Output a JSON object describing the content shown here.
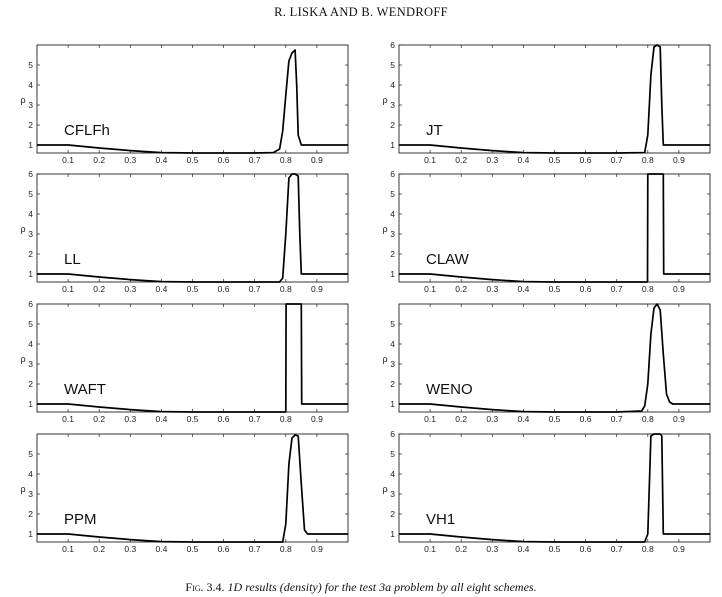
{
  "header": {
    "running_head": "R. LISKA AND B. WENDROFF"
  },
  "caption": {
    "label": "Fig. 3.4.",
    "text": "1D results (density) for the test 3a problem by all eight schemes."
  },
  "chart_data": [
    {
      "type": "line",
      "title": "CFLFh",
      "ylabel": "ρ",
      "xlim": [
        0,
        1
      ],
      "ylim": [
        0.6,
        6
      ],
      "xticks": [
        "0.1",
        "0.2",
        "0.3",
        "0.4",
        "0.5",
        "0.6",
        "0.7",
        "0.8",
        "0.9"
      ],
      "yticks": [
        "1",
        "2",
        "3",
        "4",
        "5"
      ],
      "x": [
        0,
        0.1,
        0.2,
        0.3,
        0.4,
        0.5,
        0.6,
        0.7,
        0.76,
        0.78,
        0.79,
        0.8,
        0.81,
        0.82,
        0.83,
        0.835,
        0.84,
        0.85,
        0.87,
        1.0
      ],
      "y": [
        1,
        1,
        0.85,
        0.72,
        0.62,
        0.6,
        0.6,
        0.6,
        0.62,
        0.8,
        1.7,
        3.5,
        5.2,
        5.6,
        5.75,
        4.0,
        1.5,
        1.0,
        1.0,
        1.0
      ]
    },
    {
      "type": "line",
      "title": "JT",
      "ylabel": "ρ",
      "xlim": [
        0,
        1
      ],
      "ylim": [
        0.6,
        6
      ],
      "xticks": [
        "0.1",
        "0.2",
        "0.3",
        "0.4",
        "0.5",
        "0.6",
        "0.7",
        "0.8",
        "0.9"
      ],
      "yticks": [
        "1",
        "2",
        "3",
        "4",
        "5",
        "6"
      ],
      "x": [
        0,
        0.1,
        0.2,
        0.3,
        0.4,
        0.5,
        0.6,
        0.7,
        0.79,
        0.8,
        0.81,
        0.82,
        0.83,
        0.84,
        0.845,
        0.85,
        0.87,
        1.0
      ],
      "y": [
        1,
        1,
        0.85,
        0.72,
        0.62,
        0.6,
        0.6,
        0.6,
        0.62,
        1.5,
        4.5,
        5.9,
        6.0,
        5.9,
        3.0,
        1.0,
        1.0,
        1.0
      ]
    },
    {
      "type": "line",
      "title": "LL",
      "ylabel": "ρ",
      "xlim": [
        0,
        1
      ],
      "ylim": [
        0.6,
        6
      ],
      "xticks": [
        "0.1",
        "0.2",
        "0.3",
        "0.4",
        "0.5",
        "0.6",
        "0.7",
        "0.8",
        "0.9"
      ],
      "yticks": [
        "1",
        "2",
        "3",
        "4",
        "5",
        "6"
      ],
      "x": [
        0,
        0.1,
        0.2,
        0.3,
        0.4,
        0.5,
        0.6,
        0.7,
        0.78,
        0.79,
        0.8,
        0.81,
        0.82,
        0.83,
        0.84,
        0.845,
        0.85,
        0.87,
        1.0
      ],
      "y": [
        1,
        1,
        0.85,
        0.72,
        0.62,
        0.6,
        0.6,
        0.6,
        0.6,
        0.8,
        3.0,
        5.8,
        6.0,
        6.0,
        5.9,
        3.0,
        1.0,
        1.0,
        1.0
      ]
    },
    {
      "type": "line",
      "title": "CLAW",
      "ylabel": "ρ",
      "xlim": [
        0,
        1
      ],
      "ylim": [
        0.6,
        6
      ],
      "xticks": [
        "0.1",
        "0.2",
        "0.3",
        "0.4",
        "0.5",
        "0.6",
        "0.7",
        "0.8",
        "0.9"
      ],
      "yticks": [
        "1",
        "2",
        "3",
        "4",
        "5",
        "6"
      ],
      "x": [
        0,
        0.1,
        0.2,
        0.3,
        0.4,
        0.5,
        0.6,
        0.7,
        0.799,
        0.8,
        0.81,
        0.84,
        0.85,
        0.851,
        0.87,
        1.0
      ],
      "y": [
        1,
        1,
        0.85,
        0.72,
        0.62,
        0.6,
        0.6,
        0.6,
        0.6,
        6.0,
        6.0,
        6.0,
        6.0,
        1.0,
        1.0,
        1.0
      ]
    },
    {
      "type": "line",
      "title": "WAFT",
      "ylabel": "ρ",
      "xlim": [
        0,
        1
      ],
      "ylim": [
        0.6,
        6
      ],
      "xticks": [
        "0.1",
        "0.2",
        "0.3",
        "0.4",
        "0.5",
        "0.6",
        "0.7",
        "0.8",
        "0.9"
      ],
      "yticks": [
        "1",
        "2",
        "3",
        "4",
        "5",
        "6"
      ],
      "x": [
        0,
        0.1,
        0.2,
        0.3,
        0.4,
        0.5,
        0.6,
        0.7,
        0.8,
        0.801,
        0.84,
        0.85,
        0.851,
        0.87,
        1.0
      ],
      "y": [
        1,
        1,
        0.85,
        0.72,
        0.62,
        0.6,
        0.6,
        0.6,
        0.6,
        6.0,
        6.0,
        6.0,
        1.0,
        1.0,
        1.0
      ]
    },
    {
      "type": "line",
      "title": "WENO",
      "ylabel": "ρ",
      "xlim": [
        0,
        1
      ],
      "ylim": [
        0.6,
        6
      ],
      "xticks": [
        "0.1",
        "0.2",
        "0.3",
        "0.4",
        "0.5",
        "0.6",
        "0.7",
        "0.8",
        "0.9"
      ],
      "yticks": [
        "1",
        "2",
        "3",
        "4",
        "5"
      ],
      "x": [
        0,
        0.1,
        0.2,
        0.3,
        0.4,
        0.5,
        0.6,
        0.7,
        0.78,
        0.79,
        0.8,
        0.81,
        0.82,
        0.83,
        0.84,
        0.85,
        0.86,
        0.87,
        0.88,
        1.0
      ],
      "y": [
        1,
        1,
        0.85,
        0.72,
        0.62,
        0.6,
        0.6,
        0.6,
        0.65,
        0.9,
        2.0,
        4.5,
        5.8,
        6.0,
        5.7,
        3.5,
        1.5,
        1.1,
        1.0,
        1.0
      ]
    },
    {
      "type": "line",
      "title": "PPM",
      "ylabel": "ρ",
      "xlim": [
        0,
        1
      ],
      "ylim": [
        0.6,
        6
      ],
      "xticks": [
        "0.1",
        "0.2",
        "0.3",
        "0.4",
        "0.5",
        "0.6",
        "0.7",
        "0.8",
        "0.9"
      ],
      "yticks": [
        "1",
        "2",
        "3",
        "4",
        "5"
      ],
      "x": [
        0,
        0.1,
        0.2,
        0.3,
        0.4,
        0.5,
        0.6,
        0.7,
        0.79,
        0.8,
        0.81,
        0.82,
        0.83,
        0.84,
        0.85,
        0.86,
        0.87,
        1.0
      ],
      "y": [
        1,
        1,
        0.85,
        0.72,
        0.62,
        0.6,
        0.6,
        0.6,
        0.6,
        1.5,
        4.5,
        5.8,
        5.95,
        5.9,
        3.5,
        1.2,
        1.0,
        1.0
      ]
    },
    {
      "type": "line",
      "title": "VH1",
      "ylabel": "ρ",
      "xlim": [
        0,
        1
      ],
      "ylim": [
        0.6,
        6
      ],
      "xticks": [
        "0.1",
        "0.2",
        "0.3",
        "0.4",
        "0.5",
        "0.6",
        "0.7",
        "0.8",
        "0.9"
      ],
      "yticks": [
        "1",
        "2",
        "3",
        "4",
        "5",
        "6"
      ],
      "x": [
        0,
        0.1,
        0.2,
        0.3,
        0.4,
        0.5,
        0.6,
        0.7,
        0.79,
        0.8,
        0.81,
        0.82,
        0.84,
        0.845,
        0.85,
        0.87,
        1.0
      ],
      "y": [
        1,
        1,
        0.85,
        0.72,
        0.62,
        0.6,
        0.6,
        0.6,
        0.6,
        1.0,
        5.9,
        6.0,
        6.0,
        5.9,
        1.0,
        1.0,
        1.0
      ]
    }
  ]
}
